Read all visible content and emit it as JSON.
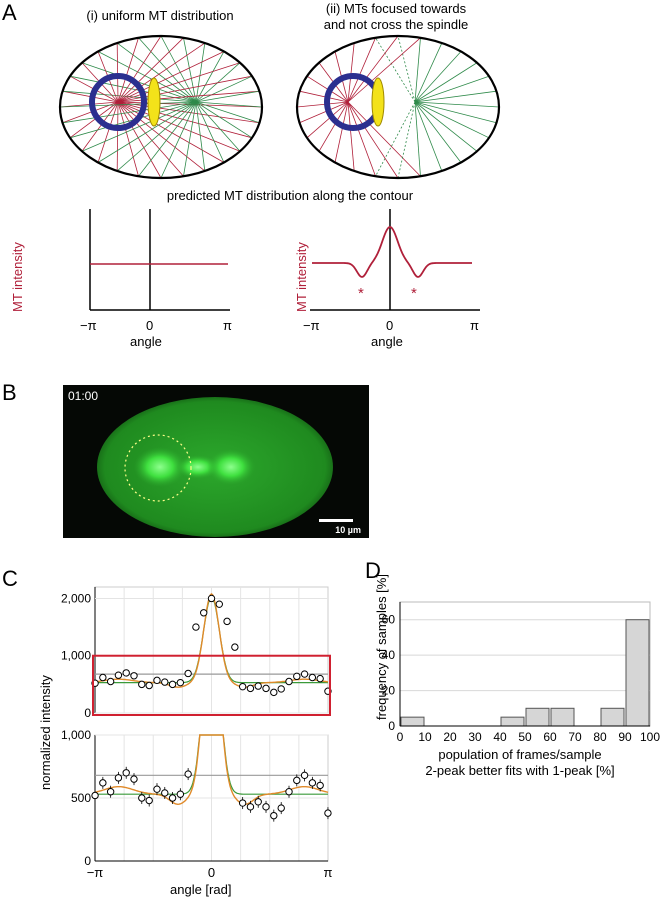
{
  "panels": {
    "A": {
      "letter": "A",
      "case1_title": "(i) uniform MT distribution",
      "case2_title_line1": "(ii) MTs focused towards",
      "case2_title_line2": "and not cross the spindle",
      "prediction_title": "predicted MT distribution along the contour",
      "plot_ylabel": "MT intensity",
      "plot_xlabel": "angle",
      "tick_left": "−π",
      "tick_mid": "0",
      "tick_right": "π",
      "star": "*"
    },
    "B": {
      "letter": "B",
      "timestamp": "01:00",
      "scale_label": "10 µm"
    },
    "C": {
      "letter": "C",
      "ylabel": "normalized intensity",
      "xlabel": "angle [rad]",
      "top_ticks": [
        "2,000",
        "1,000",
        "0"
      ],
      "bottom_ticks": [
        "1,000",
        "500",
        "0"
      ],
      "x_ticks": [
        "−π",
        "0",
        "π"
      ]
    },
    "D": {
      "letter": "D",
      "ylabel": "frequency of samples [%]",
      "xlabel_line1": "population of frames/sample",
      "xlabel_line2": "2-peak better fits with 1-peak [%]"
    }
  },
  "colors": {
    "red_mt": "#b0203a",
    "green_mt": "#2f8a4a",
    "blue_ring": "#2b2f8f",
    "spindle_yellow": "#f3e21a",
    "fit_orange": "#e08a2a",
    "fit_green": "#3a9a3a",
    "fit_gray": "#999999",
    "box_red": "#d02030",
    "bar_gray": "#d6d6d6"
  },
  "chart_data": [
    {
      "id": "D",
      "type": "bar",
      "categories": [
        "0-10",
        "10-20",
        "20-30",
        "30-40",
        "40-50",
        "50-60",
        "60-70",
        "70-80",
        "80-90",
        "90-100"
      ],
      "values": [
        5,
        0,
        0,
        0,
        5,
        10,
        10,
        0,
        10,
        60
      ],
      "ylim": [
        0,
        70
      ],
      "xlim": [
        0,
        100
      ],
      "y_ticks": [
        "0",
        "20",
        "40",
        "60"
      ],
      "x_ticks": [
        "0",
        "10",
        "20",
        "30",
        "40",
        "50",
        "60",
        "70",
        "80",
        "90",
        "100"
      ],
      "grid": true
    },
    {
      "id": "C",
      "type": "scatter",
      "xlim": [
        -3.1416,
        3.1416
      ],
      "top_ylim": [
        0,
        2200
      ],
      "bottom_ylim": [
        0,
        1000
      ],
      "x": [
        -3.14,
        -2.93,
        -2.72,
        -2.51,
        -2.3,
        -2.09,
        -1.88,
        -1.68,
        -1.47,
        -1.26,
        -1.05,
        -0.84,
        -0.63,
        -0.42,
        -0.21,
        0.0,
        0.21,
        0.42,
        0.63,
        0.84,
        1.05,
        1.26,
        1.47,
        1.68,
        1.88,
        2.09,
        2.3,
        2.51,
        2.72,
        2.93,
        3.14
      ],
      "y": [
        520,
        620,
        550,
        660,
        700,
        650,
        500,
        480,
        570,
        540,
        500,
        530,
        690,
        1500,
        1750,
        2000,
        1900,
        1600,
        1150,
        460,
        430,
        470,
        430,
        360,
        420,
        550,
        640,
        680,
        620,
        600,
        380
      ],
      "fit_1peak_baseline": 680,
      "fit_2peak_baseline": 530
    }
  ]
}
